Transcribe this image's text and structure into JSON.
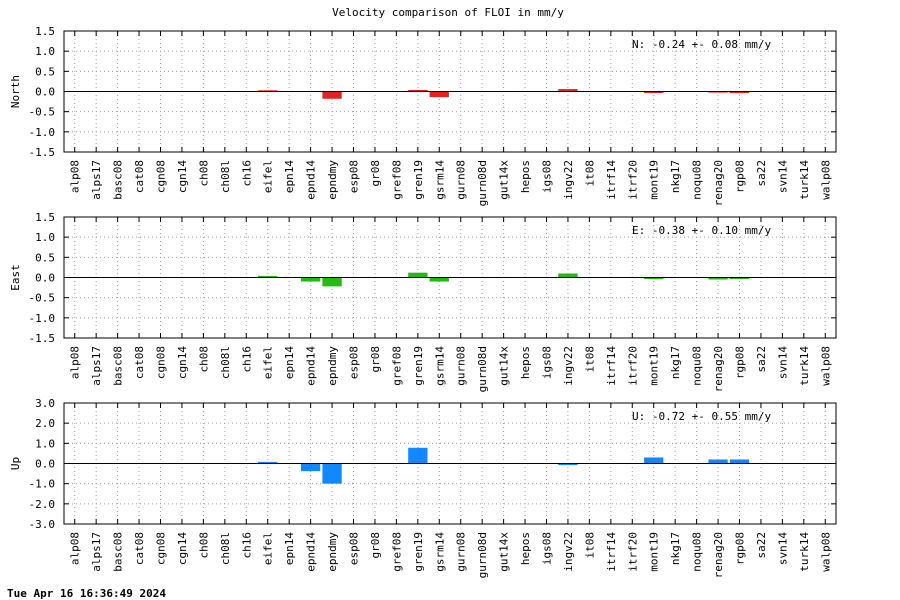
{
  "title": "Velocity comparison of FLOI in mm/y",
  "timestamp": "Tue Apr 16 16:36:49 2024",
  "chart_data": [
    {
      "type": "bar",
      "ylabel": "North",
      "ylim": [
        -1.5,
        1.5
      ],
      "yticks": [
        "1.5",
        "1.0",
        "0.5",
        "0.0",
        "-0.5",
        "-1.0",
        "-1.5"
      ],
      "grid": true,
      "color": "#e52222",
      "annotation": "N:  -0.24 +-  0.08 mm/y",
      "categories": [
        "alp08",
        "alps17",
        "basc08",
        "cat08",
        "cgn08",
        "cgn14",
        "ch08",
        "ch08l",
        "ch16",
        "eifel",
        "epn14",
        "epnd14",
        "epndmy",
        "esp08",
        "gr08",
        "gref08",
        "gren19",
        "gsrm14",
        "gurn08",
        "gurn08d",
        "gut14x",
        "hepos",
        "igs08",
        "ingv22",
        "it08",
        "itrf14",
        "itrf20",
        "mont19",
        "nkg17",
        "noqu08",
        "renag20",
        "rgp08",
        "sa22",
        "svn14",
        "turk14",
        "walp08"
      ],
      "values": [
        0,
        0,
        0,
        0,
        0,
        0,
        0,
        0,
        0,
        0.03,
        0,
        0,
        -0.18,
        0,
        0,
        0,
        0.04,
        -0.14,
        0,
        0,
        0,
        0,
        0,
        0.06,
        0,
        0,
        0,
        -0.02,
        0,
        0,
        0.01,
        -0.04,
        0,
        0,
        0,
        0
      ]
    },
    {
      "type": "bar",
      "ylabel": "East",
      "ylim": [
        -1.5,
        1.5
      ],
      "yticks": [
        "1.5",
        "1.0",
        "0.5",
        "0.0",
        "-0.5",
        "-1.0",
        "-1.5"
      ],
      "grid": true,
      "color": "#22bb11",
      "annotation": "E:  -0.38 +-  0.10 mm/y",
      "categories": [
        "alp08",
        "alps17",
        "basc08",
        "cat08",
        "cgn08",
        "cgn14",
        "ch08",
        "ch08l",
        "ch16",
        "eifel",
        "epn14",
        "epnd14",
        "epndmy",
        "esp08",
        "gr08",
        "gref08",
        "gren19",
        "gsrm14",
        "gurn08",
        "gurn08d",
        "gut14x",
        "hepos",
        "igs08",
        "ingv22",
        "it08",
        "itrf14",
        "itrf20",
        "mont19",
        "nkg17",
        "noqu08",
        "renag20",
        "rgp08",
        "sa22",
        "svn14",
        "turk14",
        "walp08"
      ],
      "values": [
        0,
        0,
        0,
        0,
        0,
        0,
        0,
        0,
        0,
        0.04,
        0,
        -0.1,
        -0.22,
        0,
        0,
        0,
        0.12,
        -0.1,
        0,
        0,
        0,
        0,
        0,
        0.1,
        0,
        0,
        0,
        -0.02,
        0,
        0,
        -0.05,
        -0.03,
        0,
        0,
        0,
        0
      ]
    },
    {
      "type": "bar",
      "ylabel": "Up",
      "ylim": [
        -3.0,
        3.0
      ],
      "yticks": [
        "3.0",
        "2.0",
        "1.0",
        "0.0",
        "-1.0",
        "-2.0",
        "-3.0"
      ],
      "grid": true,
      "color": "#1188ff",
      "annotation": "U:  -0.72 +-  0.55 mm/y",
      "categories": [
        "alp08",
        "alps17",
        "basc08",
        "cat08",
        "cgn08",
        "cgn14",
        "ch08",
        "ch08l",
        "ch16",
        "eifel",
        "epn14",
        "epnd14",
        "epndmy",
        "esp08",
        "gr08",
        "gref08",
        "gren19",
        "gsrm14",
        "gurn08",
        "gurn08d",
        "gut14x",
        "hepos",
        "igs08",
        "ingv22",
        "it08",
        "itrf14",
        "itrf20",
        "mont19",
        "nkg17",
        "noqu08",
        "renag20",
        "rgp08",
        "sa22",
        "svn14",
        "turk14",
        "walp08"
      ],
      "values": [
        0,
        0,
        0,
        0,
        0,
        0,
        0,
        0,
        0,
        0.08,
        0,
        -0.38,
        -1.0,
        0,
        0,
        0,
        0.78,
        0,
        0,
        0,
        0,
        0,
        0,
        -0.08,
        0,
        0,
        0,
        0.3,
        0,
        0,
        0.2,
        0.2,
        0,
        0,
        0,
        0
      ]
    }
  ]
}
